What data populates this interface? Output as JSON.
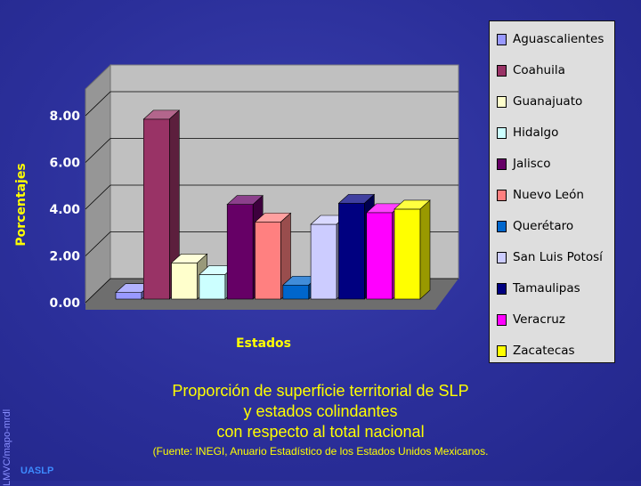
{
  "chart_data": {
    "type": "bar",
    "title": "Proporción de superficie territorial de SLP y estados colindantes con respecto al total nacional",
    "xlabel": "Estados",
    "ylabel": "Porcentajes",
    "ylim": [
      0,
      8
    ],
    "yticks": [
      "0.00",
      "2.00",
      "4.00",
      "6.00",
      "8.00"
    ],
    "grid": true,
    "legend_position": "right",
    "series": [
      {
        "name": "Aguascalientes",
        "value": 0.28,
        "color": "#9999ff"
      },
      {
        "name": "Coahuila",
        "value": 7.7,
        "color": "#993366"
      },
      {
        "name": "Guanajuato",
        "value": 1.55,
        "color": "#ffffcc"
      },
      {
        "name": "Hidalgo",
        "value": 1.05,
        "color": "#ccffff"
      },
      {
        "name": "Jalisco",
        "value": 4.05,
        "color": "#660066"
      },
      {
        "name": "Nuevo León",
        "value": 3.3,
        "color": "#ff8080"
      },
      {
        "name": "Querétaro",
        "value": 0.6,
        "color": "#0066cc"
      },
      {
        "name": "San Luis Potosí",
        "value": 3.2,
        "color": "#ccccff"
      },
      {
        "name": "Tamaulipas",
        "value": 4.1,
        "color": "#000080"
      },
      {
        "name": "Veracruz",
        "value": 3.7,
        "color": "#ff00ff"
      },
      {
        "name": "Zacatecas",
        "value": 3.85,
        "color": "#ffff00"
      }
    ]
  },
  "caption": {
    "line1": "Proporción de superficie territorial de SLP",
    "line2": "y estados colindantes",
    "line3": "con respecto al total nacional",
    "source": "(Fuente: INEGI, Anuario Estadístico de los Estados Unidos Mexicanos."
  },
  "watermark": "LMVC/mapo-mrdl",
  "org": "UASLP"
}
